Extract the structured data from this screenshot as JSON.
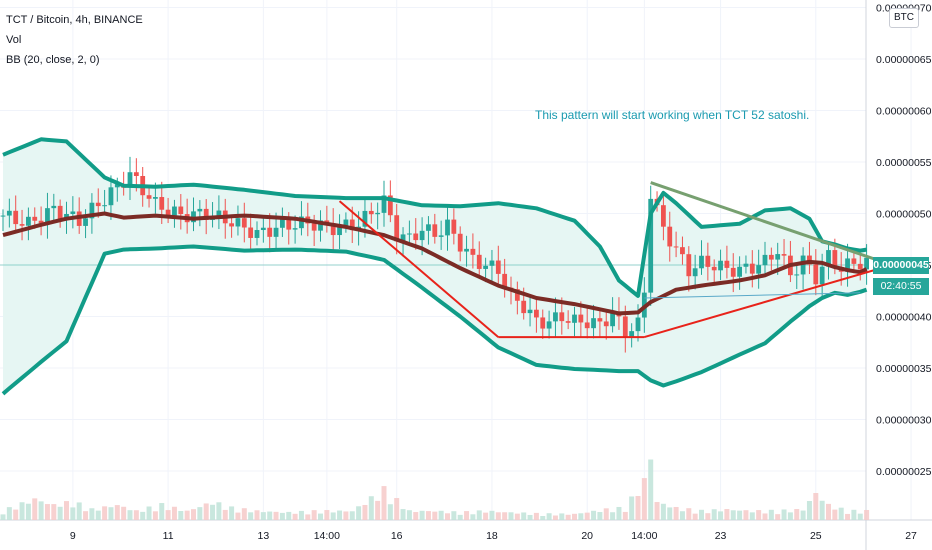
{
  "legend": {
    "symbol": "TCT / Bitcoin, 4h, BINANCE",
    "volume": "Vol",
    "bb": "BB (20, close, 2, 0)"
  },
  "currency_badge": "BTC",
  "annotation": "This pattern will start working when TCT 52 satoshi.",
  "last_price_label": "0.00000045",
  "countdown_label": "02:40:55",
  "colors": {
    "up": "#26a69a",
    "down": "#ef5350",
    "bb_band": "#119c88",
    "bb_basis": "#7b2b25",
    "bb_fill": "#e6f6f3",
    "wedge_upper": "#77a070",
    "wedge_lower": "#e8231a"
  },
  "chart_data": {
    "type": "candlestick",
    "y_axis": {
      "ticks": [
        "0.00000070",
        "0.00000065",
        "0.00000060",
        "0.00000055",
        "0.00000050",
        "0.00000045",
        "0.00000040",
        "0.00000035",
        "0.00000030",
        "0.00000025"
      ],
      "tick_values": [
        70,
        65,
        60,
        55,
        50,
        45,
        40,
        35,
        30,
        25
      ],
      "unit_scale": "1e-8 BTC",
      "ylim": [
        20,
        70
      ]
    },
    "x_axis": {
      "tick_labels": [
        "9",
        "11",
        "13",
        "14:00",
        "16",
        "18",
        "20",
        "14:00",
        "23",
        "25",
        "27"
      ],
      "tick_index": [
        11,
        26,
        41,
        51,
        62,
        77,
        92,
        101,
        113,
        128,
        143
      ]
    },
    "bollinger": {
      "index": [
        0,
        6,
        10,
        16,
        19,
        24,
        30,
        38,
        46,
        54,
        60,
        66,
        72,
        78,
        84,
        90,
        94,
        97,
        100,
        102,
        104,
        106,
        110,
        116,
        120,
        124,
        127,
        129,
        131,
        133,
        135,
        136
      ],
      "upper": [
        55.7,
        57.2,
        57.0,
        53.5,
        52.7,
        52.6,
        52.8,
        52.3,
        51.7,
        51.5,
        51.5,
        50.8,
        50.7,
        51.0,
        50.5,
        49.3,
        46.8,
        43.5,
        42.0,
        50.0,
        52.0,
        51.0,
        48.7,
        49.0,
        50.3,
        50.5,
        49.5,
        47.3,
        47.0,
        46.6,
        46.4,
        46.5
      ],
      "basis": [
        47.9,
        48.9,
        49.5,
        50.0,
        49.6,
        49.8,
        49.5,
        49.8,
        49.5,
        48.7,
        47.9,
        46.6,
        44.7,
        43.0,
        41.8,
        41.2,
        40.7,
        40.3,
        40.4,
        41.4,
        42.0,
        42.6,
        43.0,
        43.5,
        44.0,
        45.0,
        45.3,
        45.2,
        44.8,
        44.5,
        44.3,
        44.6
      ],
      "lower": [
        32.5,
        35.6,
        37.6,
        46.1,
        46.5,
        46.6,
        46.8,
        46.4,
        46.5,
        46.3,
        45.5,
        42.8,
        40.0,
        37.0,
        35.3,
        34.9,
        34.8,
        34.7,
        34.7,
        33.8,
        33.3,
        33.7,
        34.6,
        36.3,
        37.4,
        39.5,
        41.0,
        41.8,
        42.3,
        42.1,
        42.4,
        42.6
      ]
    },
    "candles_close_trace": {
      "index": [
        0,
        4,
        8,
        12,
        16,
        20,
        24,
        28,
        32,
        36,
        40,
        44,
        48,
        52,
        56,
        60,
        62,
        64,
        66,
        68,
        70,
        72,
        74,
        76,
        78,
        80,
        82,
        84,
        86,
        88,
        90,
        92,
        94,
        96,
        98,
        100,
        101,
        102,
        104,
        106,
        108,
        110,
        112,
        114,
        116,
        118,
        120,
        122,
        124,
        126,
        128,
        130,
        132,
        134
      ],
      "close": [
        49.8,
        49.0,
        50.4,
        49.3,
        51.4,
        53.8,
        50.9,
        49.8,
        50.0,
        49.2,
        48.0,
        48.8,
        49.1,
        48.6,
        49.0,
        51.2,
        48.0,
        47.5,
        48.5,
        48.0,
        48.8,
        47.0,
        45.5,
        45.0,
        44.5,
        42.0,
        41.0,
        39.5,
        39.5,
        40.0,
        39.5,
        39.5,
        39.2,
        40.3,
        38.5,
        39.2,
        42.5,
        52.0,
        48.5,
        46.5,
        44.5,
        45.2,
        45.0,
        44.6,
        44.5,
        44.8,
        45.3,
        46.5,
        44.0,
        45.5,
        43.8,
        45.8,
        44.7,
        45.2
      ]
    },
    "volume_hist": {
      "index": [
        0,
        5,
        8,
        11,
        14,
        18,
        21,
        25,
        29,
        33,
        36,
        40,
        45,
        50,
        55,
        60,
        64,
        68,
        72,
        76,
        80,
        85,
        90,
        95,
        98,
        100,
        101,
        102,
        103,
        106,
        110,
        114,
        118,
        122,
        126,
        128,
        130,
        133
      ],
      "rel": [
        0.3,
        0.7,
        0.5,
        0.6,
        0.35,
        0.5,
        0.3,
        0.5,
        0.3,
        0.6,
        0.4,
        0.3,
        0.25,
        0.3,
        0.3,
        1.0,
        0.3,
        0.3,
        0.25,
        0.3,
        0.25,
        0.2,
        0.2,
        0.35,
        0.4,
        1.0,
        1.3,
        2.2,
        0.6,
        0.4,
        0.3,
        0.35,
        0.3,
        0.3,
        0.35,
        0.9,
        0.5,
        0.3
      ]
    },
    "wedge": {
      "upper_line": {
        "from_index": 102,
        "from_value": 53.0,
        "to_index": 140,
        "to_value": 45.0
      },
      "lower_line": {
        "from_index": 101,
        "from_value": 38.0,
        "to_index": 140,
        "to_value": 45.0
      },
      "descent_line": {
        "from_index": 53,
        "from_value": 51.2,
        "to_index": 78,
        "to_value": 38.0
      },
      "floor_line": {
        "from_index": 78,
        "from_value": 38.0,
        "to_index": 101,
        "to_value": 38.0
      }
    },
    "last_price": 45.0
  }
}
